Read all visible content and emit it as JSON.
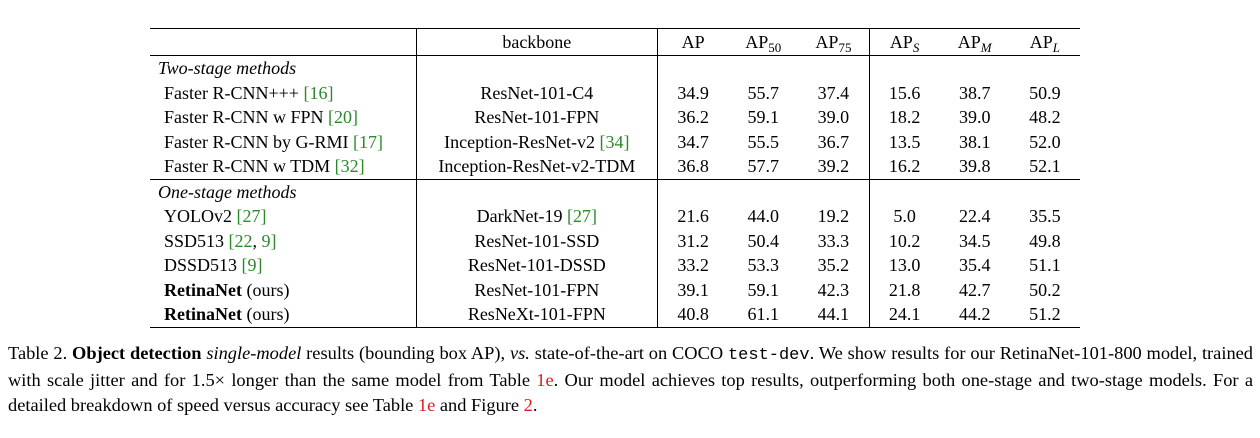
{
  "table": {
    "headers": {
      "backbone": "backbone",
      "ap": "AP",
      "ap50_base": "AP",
      "ap50_sub": "50",
      "ap75_base": "AP",
      "ap75_sub": "75",
      "aps_base": "AP",
      "aps_sub": "S",
      "apm_base": "AP",
      "apm_sub": "M",
      "apl_base": "AP",
      "apl_sub": "L"
    },
    "group1": {
      "label": "Two-stage methods",
      "rows": [
        {
          "method": "Faster R-CNN+++ ",
          "ref": "[16]",
          "suffix": "",
          "backbone": "ResNet-101-C4",
          "bref": "",
          "ap": "34.9",
          "ap50": "55.7",
          "ap75": "37.4",
          "aps": "15.6",
          "apm": "38.7",
          "apl": "50.9"
        },
        {
          "method": "Faster R-CNN w FPN ",
          "ref": "[20]",
          "suffix": "",
          "backbone": "ResNet-101-FPN",
          "bref": "",
          "ap": "36.2",
          "ap50": "59.1",
          "ap75": "39.0",
          "aps": "18.2",
          "apm": "39.0",
          "apl": "48.2"
        },
        {
          "method": "Faster R-CNN by G-RMI ",
          "ref": "[17]",
          "suffix": "",
          "backbone": "Inception-ResNet-v2 ",
          "bref": "[34]",
          "ap": "34.7",
          "ap50": "55.5",
          "ap75": "36.7",
          "aps": "13.5",
          "apm": "38.1",
          "apl": "52.0"
        },
        {
          "method": "Faster R-CNN w TDM ",
          "ref": "[32]",
          "suffix": "",
          "backbone": "Inception-ResNet-v2-TDM",
          "bref": "",
          "ap": "36.8",
          "ap50": "57.7",
          "ap75": "39.2",
          "aps": "16.2",
          "apm": "39.8",
          "apl": "52.1"
        }
      ]
    },
    "group2": {
      "label": "One-stage methods",
      "rows": [
        {
          "method": "YOLOv2 ",
          "ref": "[27]",
          "backbone": "DarkNet-19 ",
          "bref": "[27]",
          "ap": "21.6",
          "ap50": "44.0",
          "ap75": "19.2",
          "aps": "5.0",
          "apm": "22.4",
          "apl": "35.5"
        },
        {
          "method": "SSD513 ",
          "ref_a": "[22",
          "ref_sep": ", ",
          "ref_b": "9]",
          "backbone": "ResNet-101-SSD",
          "ap": "31.2",
          "ap50": "50.4",
          "ap75": "33.3",
          "aps": "10.2",
          "apm": "34.5",
          "apl": "49.8"
        },
        {
          "method": "DSSD513 ",
          "ref": "[9]",
          "backbone": "ResNet-101-DSSD",
          "ap": "33.2",
          "ap50": "53.3",
          "ap75": "35.2",
          "aps": "13.0",
          "apm": "35.4",
          "apl": "51.1"
        },
        {
          "method_bold": "RetinaNet",
          "method_rest": " (ours)",
          "backbone": "ResNet-101-FPN",
          "ap": "39.1",
          "ap50": "59.1",
          "ap75": "42.3",
          "aps": "21.8",
          "apm": "42.7",
          "apl": "50.2"
        },
        {
          "method_bold": "RetinaNet",
          "method_rest": " (ours)",
          "backbone": "ResNeXt-101-FPN",
          "ap": "40.8",
          "ap50": "61.1",
          "ap75": "44.1",
          "aps": "24.1",
          "apm": "44.2",
          "apl": "51.2"
        }
      ]
    }
  },
  "caption": {
    "t1": "Table 2. ",
    "t2": "Object detection",
    "t3": " ",
    "t4": "single-model",
    "t5": " results (bounding box AP), ",
    "t6": "vs.",
    "t7": " state-of-the-art on COCO ",
    "t8": "test-dev",
    "t9": ". We show results for our RetinaNet-101-800 model, trained with scale jitter and for 1.5× longer than the same model from Table ",
    "t10": "1e",
    "t11": ". Our model achieves top results, outperforming both one-stage and two-stage models. For a detailed breakdown of speed versus accuracy see Table ",
    "t12": "1e",
    "t13": " and Figure ",
    "t14": "2",
    "t15": "."
  },
  "colors": {
    "ref_green": "#2a8a2a",
    "ref_red": "#d42020"
  }
}
